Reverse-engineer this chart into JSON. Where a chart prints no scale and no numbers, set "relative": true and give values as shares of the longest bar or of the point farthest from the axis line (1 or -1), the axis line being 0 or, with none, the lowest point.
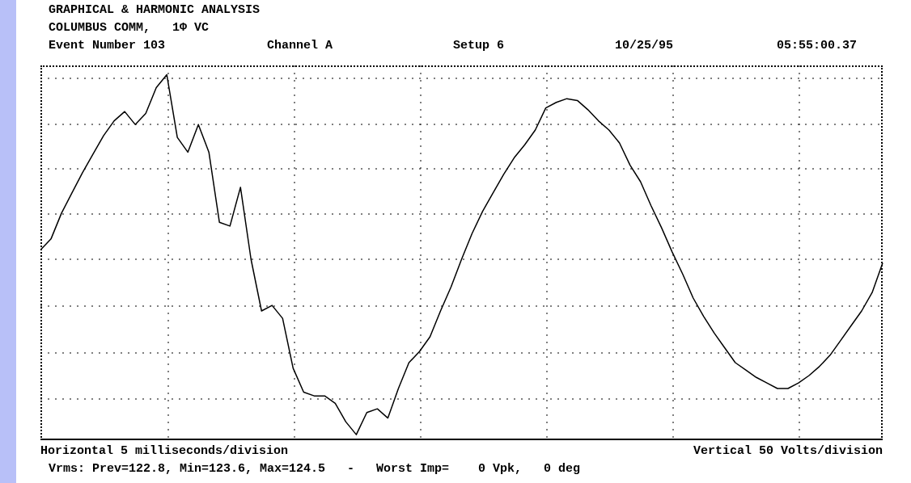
{
  "chart_data": {
    "type": "line",
    "title": "GRAPHICAL & HARMONIC ANALYSIS",
    "subtitle": "COLUMBUS COMM,   1Φ VC",
    "annotations": [
      "Event Number 103",
      "Channel A",
      "Setup 6",
      "10/25/95",
      "05:55:00.37",
      "Vertical 50 Volts/division",
      "Vrms: Prev=122.8, Min=123.6, Max=124.5   -   Worst Imp=    0 Vpk,   0 deg"
    ],
    "xlabel": "Horizontal 5 milliseconds/division",
    "relative": true,
    "grid": true,
    "categories": [
      null,
      null,
      null,
      null,
      null,
      null,
      null,
      null,
      null,
      null,
      null,
      null,
      null,
      null,
      null,
      null,
      null,
      null,
      null,
      null,
      null,
      null,
      null,
      null,
      null,
      null,
      null,
      null,
      null,
      null,
      null,
      null,
      null,
      null,
      null,
      null,
      null,
      null,
      null,
      null,
      null,
      null,
      null,
      null,
      null,
      null,
      null,
      null,
      null,
      null,
      null,
      null,
      null,
      null,
      null,
      null,
      null,
      null,
      null,
      null,
      null,
      null,
      null,
      null,
      null,
      null,
      null,
      null,
      null,
      null,
      null,
      null,
      null,
      null,
      null,
      null,
      null,
      null,
      null,
      null,
      null
    ],
    "series": [
      {
        "color": "#000000",
        "values": [
          0.05,
          0.11,
          0.25,
          0.36,
          0.47,
          0.57,
          0.67,
          0.75,
          0.8,
          0.73,
          0.79,
          0.93,
          1.0,
          0.66,
          0.58,
          0.73,
          0.58,
          0.2,
          0.18,
          0.39,
          0.0,
          -0.28,
          -0.25,
          -0.32,
          -0.59,
          -0.72,
          -0.74,
          -0.74,
          -0.78,
          -0.88,
          -0.95,
          -0.83,
          -0.81,
          -0.86,
          -0.7,
          -0.56,
          -0.5,
          -0.42,
          -0.28,
          -0.15,
          0.0,
          0.14,
          0.26,
          0.36,
          0.46,
          0.55,
          0.62,
          0.7,
          0.82,
          0.85,
          0.87,
          0.86,
          0.81,
          0.75,
          0.7,
          0.63,
          0.51,
          0.42,
          0.29,
          0.17,
          0.04,
          -0.08,
          -0.21,
          -0.31,
          -0.4,
          -0.48,
          -0.56,
          -0.6,
          -0.64,
          -0.67,
          -0.7,
          -0.7,
          -0.67,
          -0.63,
          -0.58,
          -0.52,
          -0.44,
          -0.36,
          -0.28,
          -0.18,
          -0.02
        ]
      }
    ]
  }
}
